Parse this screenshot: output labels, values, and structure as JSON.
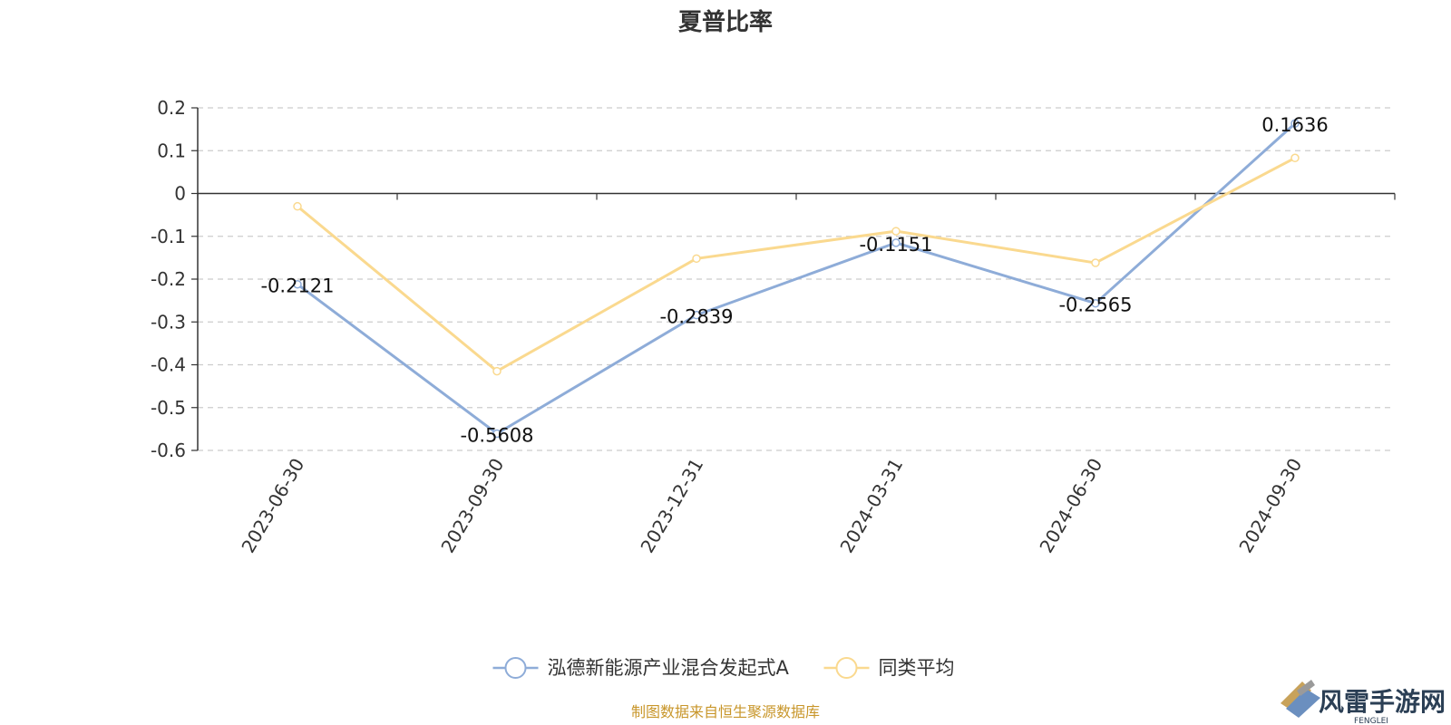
{
  "chart_data": {
    "type": "line",
    "title": "夏普比率",
    "categories": [
      "2023-06-30",
      "2023-09-30",
      "2023-12-31",
      "2024-03-31",
      "2024-06-30",
      "2024-09-30"
    ],
    "series": [
      {
        "name": "泓德新能源产业混合发起式A",
        "values": [
          -0.2121,
          -0.5608,
          -0.2839,
          -0.1151,
          -0.2565,
          0.1636
        ],
        "labels": [
          "-0.2121",
          "-0.5608",
          "-0.2839",
          "-0.1151",
          "-0.2565",
          "0.1636"
        ],
        "color": "#8eacd8"
      },
      {
        "name": "同类平均",
        "values": [
          -0.03,
          -0.415,
          -0.152,
          -0.088,
          -0.162,
          0.083
        ],
        "color": "#fad98f"
      }
    ],
    "ylim": [
      -0.6,
      0.2
    ],
    "yticks": [
      0.2,
      0.1,
      0,
      -0.1,
      -0.2,
      -0.3,
      -0.4,
      -0.5,
      -0.6
    ],
    "ytick_labels": [
      "0.2",
      "0.1",
      "0",
      "-0.1",
      "-0.2",
      "-0.3",
      "-0.4",
      "-0.5",
      "-0.6"
    ],
    "grid": true,
    "legend_position": "bottom-center"
  },
  "source_note": "制图数据来自恒生聚源数据库",
  "watermark": {
    "name": "风雷手游网",
    "sub": "FENGLEI"
  }
}
